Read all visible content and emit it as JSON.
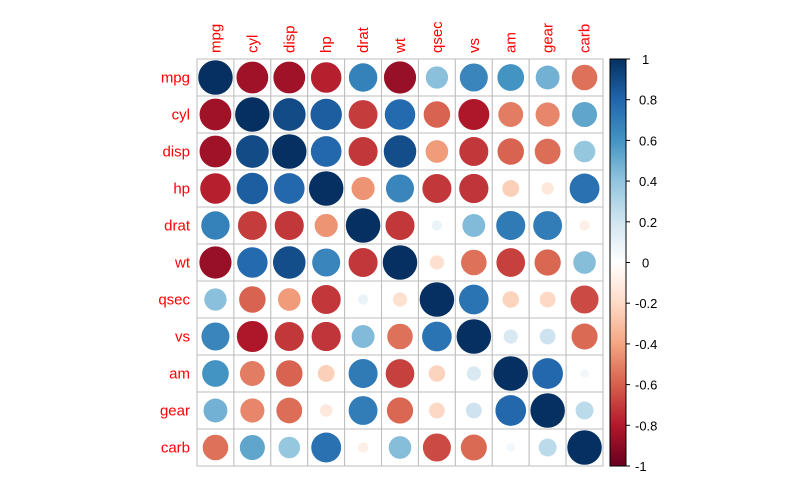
{
  "chart_data": {
    "type": "heatmap",
    "subtype": "correlation-circle",
    "title": "",
    "variables": [
      "mpg",
      "cyl",
      "disp",
      "hp",
      "drat",
      "wt",
      "qsec",
      "vs",
      "am",
      "gear",
      "carb"
    ],
    "matrix": [
      [
        1.0,
        -0.85,
        -0.85,
        -0.78,
        0.68,
        -0.87,
        0.42,
        0.66,
        0.6,
        0.48,
        -0.55
      ],
      [
        -0.85,
        1.0,
        0.9,
        0.83,
        -0.7,
        0.78,
        -0.59,
        -0.81,
        -0.52,
        -0.49,
        0.53
      ],
      [
        -0.85,
        0.9,
        1.0,
        0.79,
        -0.71,
        0.89,
        -0.43,
        -0.71,
        -0.59,
        -0.56,
        0.39
      ],
      [
        -0.78,
        0.83,
        0.79,
        1.0,
        -0.45,
        0.66,
        -0.71,
        -0.72,
        -0.24,
        -0.13,
        0.75
      ],
      [
        0.68,
        -0.7,
        -0.71,
        -0.45,
        1.0,
        -0.71,
        0.09,
        0.44,
        0.71,
        0.7,
        -0.09
      ],
      [
        -0.87,
        0.78,
        0.89,
        0.66,
        -0.71,
        1.0,
        -0.17,
        -0.55,
        -0.69,
        -0.58,
        0.43
      ],
      [
        0.42,
        -0.59,
        -0.43,
        -0.71,
        0.09,
        -0.17,
        1.0,
        0.74,
        -0.23,
        -0.21,
        -0.66
      ],
      [
        0.66,
        -0.81,
        -0.71,
        -0.72,
        0.44,
        -0.55,
        0.74,
        1.0,
        0.17,
        0.21,
        -0.57
      ],
      [
        0.6,
        -0.52,
        -0.59,
        -0.24,
        0.71,
        -0.69,
        -0.23,
        0.17,
        1.0,
        0.79,
        0.06
      ],
      [
        0.48,
        -0.49,
        -0.56,
        -0.13,
        0.7,
        -0.58,
        -0.21,
        0.21,
        0.79,
        1.0,
        0.27
      ],
      [
        -0.55,
        0.53,
        0.39,
        0.75,
        -0.09,
        0.43,
        -0.66,
        -0.57,
        0.06,
        0.27,
        1.0
      ]
    ],
    "colorbar": {
      "range": [
        -1,
        1
      ],
      "ticks": [
        "1",
        "0.8",
        "0.6",
        "0.4",
        "0.2",
        "0",
        "-0.2",
        "-0.4",
        "-0.6",
        "-0.8",
        "-1"
      ],
      "tick_values": [
        1,
        0.8,
        0.6,
        0.4,
        0.2,
        0,
        -0.2,
        -0.4,
        -0.6,
        -0.8,
        -1
      ],
      "colors": [
        "#67001F",
        "#B2182B",
        "#D6604D",
        "#F4A582",
        "#FDDBC7",
        "#FFFFFF",
        "#D1E5F0",
        "#92C5DE",
        "#4393C3",
        "#2166AC",
        "#053061"
      ]
    },
    "label_color": "#FF0000",
    "grid_color": "#BEBEBE"
  }
}
